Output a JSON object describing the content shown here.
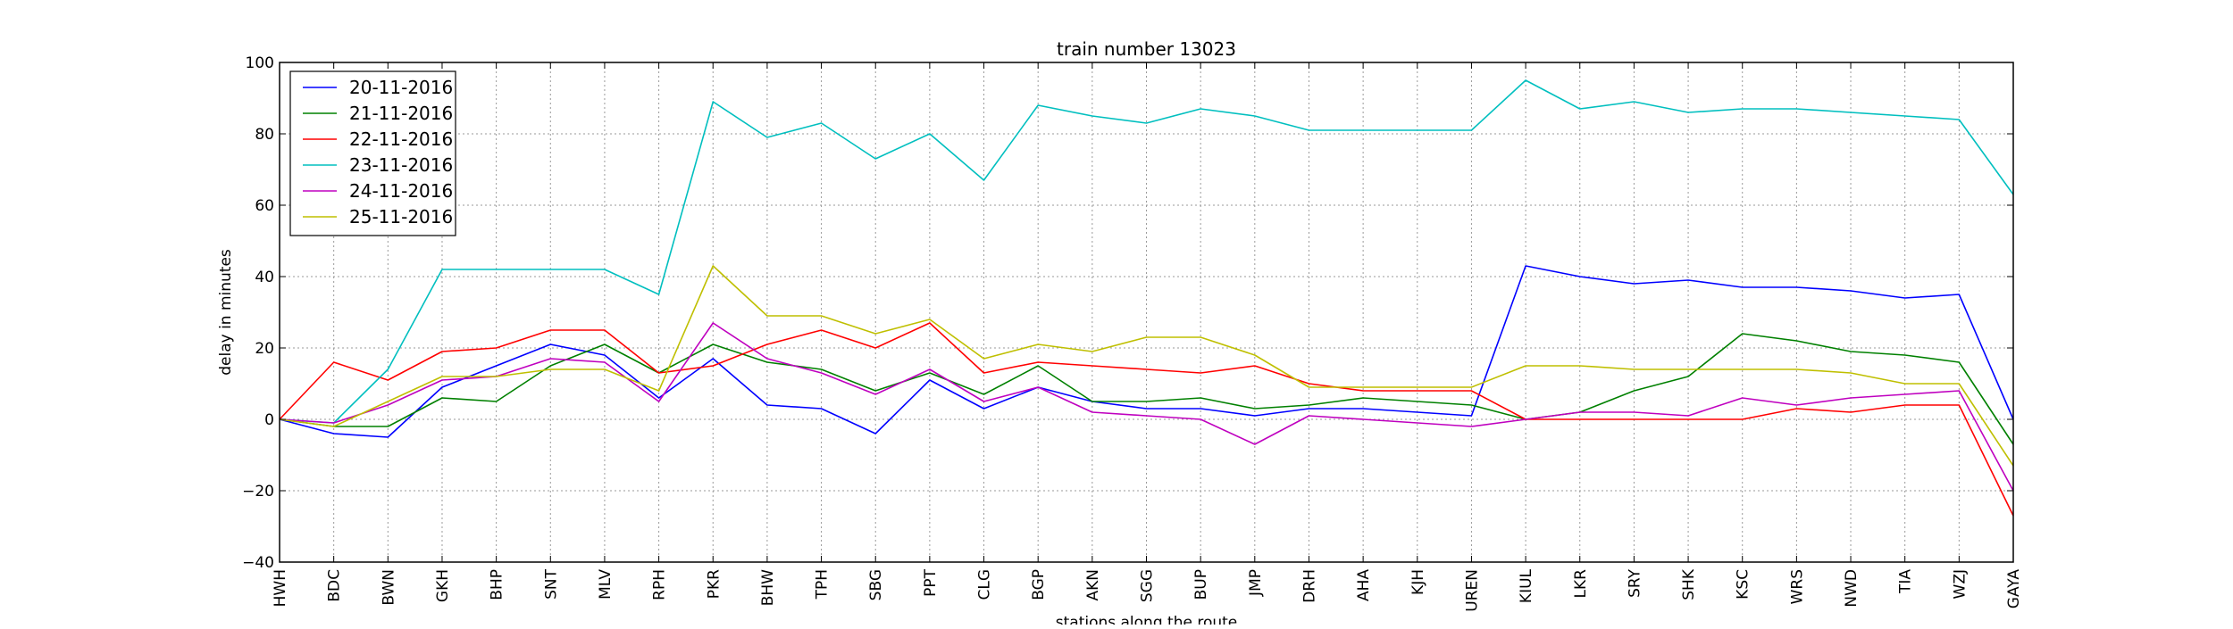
{
  "chart_data": {
    "type": "line",
    "title": "train number 13023",
    "xlabel": "stations along the route",
    "ylabel": "delay in minutes",
    "ylim": [
      -40,
      100
    ],
    "yticks": [
      -40,
      -20,
      0,
      20,
      40,
      60,
      80,
      100
    ],
    "grid": true,
    "legend_position": "top-left",
    "categories": [
      "HWH",
      "BDC",
      "BWN",
      "GKH",
      "BHP",
      "SNT",
      "MLV",
      "RPH",
      "PKR",
      "BHW",
      "TPH",
      "SBG",
      "PPT",
      "CLG",
      "BGP",
      "AKN",
      "SGG",
      "BUP",
      "JMP",
      "DRH",
      "AHA",
      "KJH",
      "UREN",
      "KIUL",
      "LKR",
      "SRY",
      "SHK",
      "KSC",
      "WRS",
      "NWD",
      "TIA",
      "WZJ",
      "GAYA"
    ],
    "series": [
      {
        "name": "20-11-2016",
        "color": "#0000ff",
        "values": [
          0,
          -4,
          -5,
          9,
          15,
          21,
          18,
          6,
          17,
          4,
          3,
          -4,
          11,
          3,
          9,
          5,
          3,
          3,
          1,
          3,
          3,
          2,
          1,
          43,
          40,
          38,
          39,
          37,
          37,
          36,
          34,
          35,
          0
        ]
      },
      {
        "name": "21-11-2016",
        "color": "#008000",
        "values": [
          0,
          -2,
          -2,
          6,
          5,
          15,
          21,
          13,
          21,
          16,
          14,
          8,
          13,
          7,
          15,
          5,
          5,
          6,
          3,
          4,
          6,
          5,
          4,
          0,
          2,
          8,
          12,
          24,
          22,
          19,
          18,
          16,
          -7
        ]
      },
      {
        "name": "22-11-2016",
        "color": "#ff0000",
        "values": [
          0,
          16,
          11,
          19,
          20,
          25,
          25,
          13,
          15,
          21,
          25,
          20,
          27,
          13,
          16,
          15,
          14,
          13,
          15,
          10,
          8,
          8,
          8,
          0,
          0,
          0,
          0,
          0,
          3,
          2,
          4,
          4,
          -27
        ]
      },
      {
        "name": "23-11-2016",
        "color": "#00bfbf",
        "values": [
          0,
          -1,
          14,
          42,
          42,
          42,
          42,
          35,
          89,
          79,
          83,
          73,
          80,
          67,
          88,
          85,
          83,
          87,
          85,
          81,
          81,
          81,
          81,
          95,
          87,
          89,
          86,
          87,
          87,
          86,
          85,
          84,
          63
        ]
      },
      {
        "name": "24-11-2016",
        "color": "#bf00bf",
        "values": [
          0,
          -1,
          4,
          11,
          12,
          17,
          16,
          5,
          27,
          17,
          13,
          7,
          14,
          5,
          9,
          2,
          1,
          0,
          -7,
          1,
          0,
          -1,
          -2,
          0,
          2,
          2,
          1,
          6,
          4,
          6,
          7,
          8,
          -20
        ]
      },
      {
        "name": "25-11-2016",
        "color": "#bfbf00",
        "values": [
          0,
          -2,
          5,
          12,
          12,
          14,
          14,
          8,
          43,
          29,
          29,
          24,
          28,
          17,
          21,
          19,
          23,
          23,
          18,
          9,
          9,
          9,
          9,
          15,
          15,
          14,
          14,
          14,
          14,
          13,
          10,
          10,
          -13
        ]
      }
    ]
  }
}
